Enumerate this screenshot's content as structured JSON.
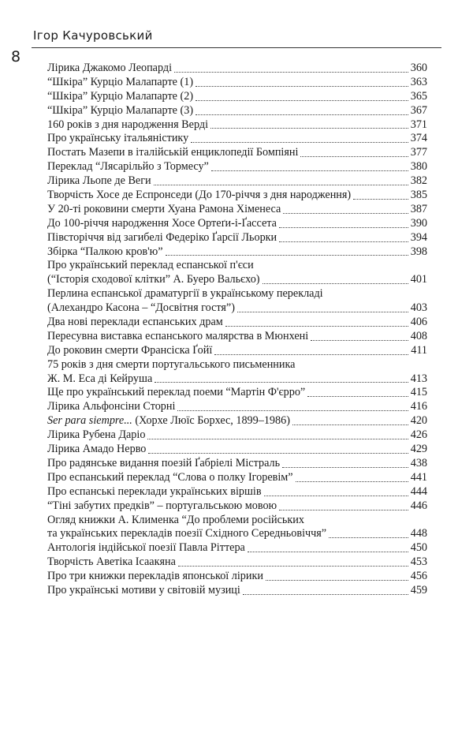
{
  "header": {
    "author": "Ігор Качуровський",
    "page_number": 8
  },
  "entries": [
    {
      "lines": [
        "Лірика Джакомо Леопарді"
      ],
      "page": 360
    },
    {
      "lines": [
        "“Шкіра” Курціо Малапарте (1)"
      ],
      "page": 363
    },
    {
      "lines": [
        "“Шкіра” Курціо Малапарте (2)"
      ],
      "page": 365
    },
    {
      "lines": [
        "“Шкіра” Курціо Малапарте (3)"
      ],
      "page": 367
    },
    {
      "lines": [
        "160 років з дня народження Верді"
      ],
      "page": 371
    },
    {
      "lines": [
        "Про українську італьяністику"
      ],
      "page": 374
    },
    {
      "lines": [
        "Постать Мазепи в італійській енциклопедії Бомпіяні"
      ],
      "page": 377
    },
    {
      "lines": [
        "Переклад “Лясарільйо з Тормесу”"
      ],
      "page": 380
    },
    {
      "lines": [
        "Лірика Льопе де Веги"
      ],
      "page": 382
    },
    {
      "lines": [
        "Творчість Хосе де Еспронседи (До 170-річчя з дня народження)"
      ],
      "page": 385
    },
    {
      "lines": [
        "У 20-ті роковини смерти Хуана Рамона Хіменеса"
      ],
      "page": 387
    },
    {
      "lines": [
        "До 100-річчя народження Хосе Ортеґи-і-Ґассета"
      ],
      "page": 390
    },
    {
      "lines": [
        "Півсторіччя від загибелі Федеріко Ґарсії Льорки"
      ],
      "page": 394
    },
    {
      "lines": [
        "Збірка “Палкою кров'ю”"
      ],
      "page": 398
    },
    {
      "lines": [
        "Про український переклад еспанської п'єси",
        "(“Історія сходової клітки” А. Буеро Вальєхо)"
      ],
      "page": 401
    },
    {
      "lines": [
        "Перлина еспанської драматургії в українському перекладі",
        "(Алехандро Касона – “Досвітня гостя”)"
      ],
      "page": 403
    },
    {
      "lines": [
        "Два нові переклади еспанських драм"
      ],
      "page": 406
    },
    {
      "lines": [
        "Пересувна виставка еспанського малярства в Мюнхені"
      ],
      "page": 408
    },
    {
      "lines": [
        "До роковин смерти Франсіска Ґойї"
      ],
      "page": 411
    },
    {
      "lines": [
        "75 років з дня смерти португальського письменника",
        "Ж. М. Еса ді Кейруша"
      ],
      "page": 413
    },
    {
      "lines": [
        "Ще про український переклад поеми “Мартін Ф'єрро”"
      ],
      "page": 415
    },
    {
      "lines": [
        "Лірика Альфонсіни Сторні"
      ],
      "page": 416
    },
    {
      "italic": "Ser para siempre...",
      "lines": [
        "(Хорхе Люїс Борхес, 1899–1986)"
      ],
      "page": 420
    },
    {
      "lines": [
        "Лірика Рубена Даріо"
      ],
      "page": 426
    },
    {
      "lines": [
        "Лірика Амадо Нерво"
      ],
      "page": 429
    },
    {
      "lines": [
        "Про радянське видання поезій Ґабріелі Містраль"
      ],
      "page": 438
    },
    {
      "lines": [
        "Про еспанський переклад “Слова о полку Ігоревім”"
      ],
      "page": 441
    },
    {
      "lines": [
        "Про еспанські переклади українських віршів"
      ],
      "page": 444
    },
    {
      "lines": [
        "“Тіні забутих предків” – португальською мовою"
      ],
      "page": 446
    },
    {
      "lines": [
        "Огляд книжки А. Клименка “До проблеми російських",
        "та українських перекладів поезії Східного Середньовіччя”"
      ],
      "page": 448
    },
    {
      "lines": [
        "Антологія індійської поезії Павла Ріттера"
      ],
      "page": 450
    },
    {
      "lines": [
        "Творчість Аветіка Ісаакяна"
      ],
      "page": 453
    },
    {
      "lines": [
        "Про три книжки перекладів японської лірики"
      ],
      "page": 456
    },
    {
      "lines": [
        "Про українські мотиви у світовій музиці"
      ],
      "page": 459
    }
  ]
}
